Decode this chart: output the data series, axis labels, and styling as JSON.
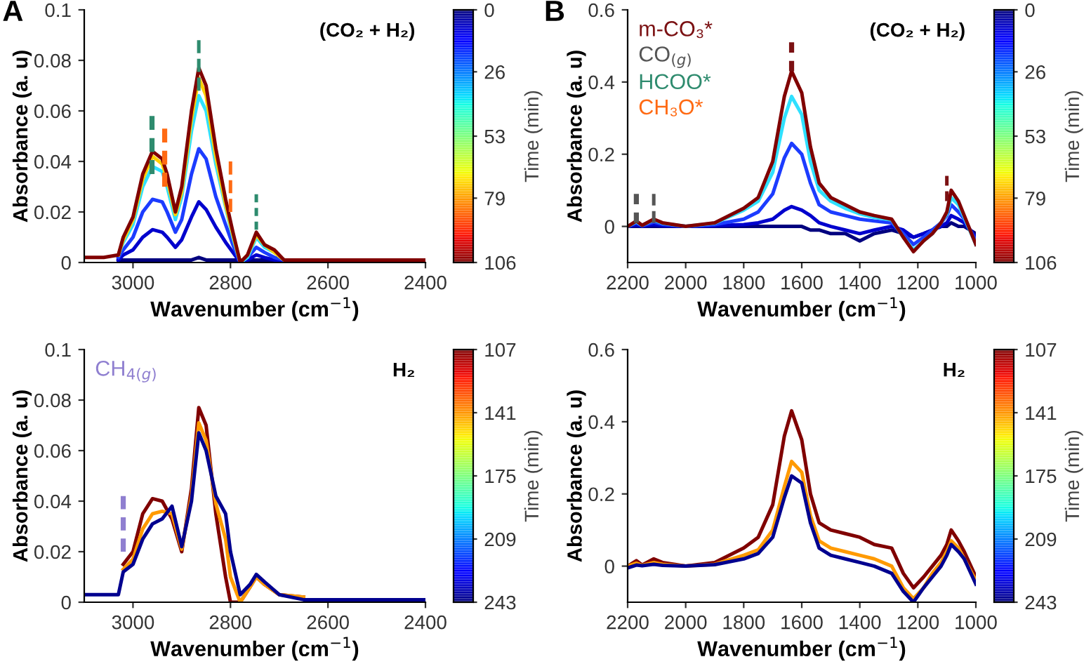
{
  "chart_data": [
    {
      "type": "line",
      "annotations": [
        "A",
        "(CO₂ + H₂)"
      ],
      "xlabel": "Wavenumber (cm$^{−1}$)",
      "ylabel": "Absorbance (a. u)",
      "clabel": "Time (min)",
      "clim": [
        106,
        0
      ],
      "cticks": [
        0,
        26,
        53,
        79,
        106
      ],
      "xlim": [
        3100,
        2400
      ],
      "xticks": [
        3000,
        2800,
        2600,
        2400
      ],
      "ylim": [
        0,
        0.1
      ],
      "yticks": [
        0,
        0.02,
        0.04,
        0.06,
        0.08,
        0.1
      ],
      "grid": false,
      "marker": "none",
      "legend": false,
      "x": [
        3100,
        3060,
        3030,
        3020,
        3000,
        2980,
        2960,
        2940,
        2930,
        2913,
        2900,
        2880,
        2865,
        2850,
        2830,
        2810,
        2795,
        2780,
        2765,
        2747,
        2730,
        2710,
        2690,
        2600,
        2500,
        2400
      ],
      "series": [
        {
          "color": "#00007f",
          "values": [
            null,
            null,
            0.001,
            0.001,
            0.001,
            0.001,
            0.001,
            0.001,
            0.001,
            0.001,
            0.001,
            0.001,
            0.002,
            0.001,
            0.001,
            0.001,
            0.001,
            0.001,
            0.001,
            0.001,
            0.001,
            0.001,
            0.001,
            null,
            null,
            null
          ]
        },
        {
          "color": "#0000cd",
          "values": [
            null,
            null,
            0.001,
            0.003,
            0.005,
            0.01,
            0.013,
            0.012,
            0.01,
            0.006,
            0.009,
            0.018,
            0.024,
            0.021,
            0.014,
            0.008,
            0.004,
            0.0,
            0.001,
            0.003,
            0.002,
            0.001,
            0.001,
            null,
            null,
            null
          ]
        },
        {
          "color": "#1c3cff",
          "values": [
            null,
            null,
            0.002,
            0.005,
            0.01,
            0.02,
            0.025,
            0.024,
            0.02,
            0.012,
            0.017,
            0.035,
            0.045,
            0.041,
            0.026,
            0.015,
            0.007,
            0.0,
            0.002,
            0.006,
            0.004,
            0.002,
            0.001,
            null,
            null,
            null
          ]
        },
        {
          "color": "#2fe0ff",
          "values": [
            null,
            null,
            0.003,
            0.008,
            0.015,
            0.03,
            0.038,
            0.036,
            0.03,
            0.017,
            0.026,
            0.052,
            0.066,
            0.06,
            0.039,
            0.022,
            0.01,
            0.0,
            0.002,
            0.01,
            0.006,
            0.004,
            0.001,
            null,
            null,
            null
          ]
        },
        {
          "color": "#ffd000",
          "values": [
            null,
            null,
            0.003,
            0.009,
            0.017,
            0.033,
            0.042,
            0.039,
            0.033,
            0.019,
            0.028,
            0.057,
            0.073,
            0.066,
            0.042,
            0.023,
            0.011,
            0.0,
            0.003,
            0.011,
            0.007,
            0.004,
            0.001,
            null,
            null,
            null
          ]
        },
        {
          "color": "#800000",
          "values": [
            0.002,
            0.002,
            0.003,
            0.01,
            0.018,
            0.035,
            0.044,
            0.041,
            0.035,
            0.02,
            0.03,
            0.06,
            0.077,
            0.07,
            0.045,
            0.025,
            0.012,
            0.0,
            0.003,
            0.012,
            0.007,
            0.005,
            0.001,
            0.001,
            0.001,
            0.001
          ]
        },
        {
          "name": "HCOO*",
          "color": "#2e8b6e",
          "line_style": "dashed",
          "x": [
            2961,
            2961
          ],
          "values": [
            0.035,
            0.058
          ]
        },
        {
          "color": "#2e8b6e",
          "line_style": "dashed",
          "x": [
            2865,
            2865
          ],
          "values": [
            0.068,
            0.088
          ]
        },
        {
          "color": "#2e8b6e",
          "line_style": "dashed",
          "x": [
            2747,
            2747
          ],
          "values": [
            0.013,
            0.027
          ]
        },
        {
          "name": "CH₃O*",
          "color": "#ff6a13",
          "line_style": "dashed",
          "x": [
            2935,
            2935
          ],
          "values": [
            0.03,
            0.053
          ]
        },
        {
          "color": "#ff6a13",
          "line_style": "dashed",
          "x": [
            2800,
            2800
          ],
          "values": [
            0.02,
            0.04
          ]
        }
      ]
    },
    {
      "type": "line",
      "annotations": [
        "B",
        "(CO₂ + H₂)"
      ],
      "xlabel": "Wavenumber (cm$^{−1}$)",
      "ylabel": "Absorbance (a. u)",
      "clabel": "Time (min)",
      "clim": [
        106,
        0
      ],
      "cticks": [
        0,
        26,
        53,
        79,
        106
      ],
      "xlim": [
        2200,
        1000
      ],
      "xticks": [
        2200,
        2000,
        1800,
        1600,
        1400,
        1200,
        1000
      ],
      "ylim": [
        -0.1,
        0.6
      ],
      "yticks": [
        0,
        0.2,
        0.4,
        0.6
      ],
      "grid": false,
      "marker": "none",
      "legend": "top left",
      "x": [
        2200,
        2170,
        2150,
        2110,
        2080,
        2000,
        1900,
        1800,
        1750,
        1700,
        1660,
        1635,
        1600,
        1570,
        1540,
        1500,
        1450,
        1400,
        1350,
        1290,
        1250,
        1215,
        1180,
        1150,
        1120,
        1100,
        1085,
        1060,
        1040,
        1000
      ],
      "series": [
        {
          "color": "#00007f",
          "values": [
            0,
            0,
            0,
            0,
            0,
            0,
            0,
            0,
            0,
            0,
            0,
            0,
            0,
            -0.01,
            -0.01,
            -0.02,
            -0.02,
            -0.04,
            -0.02,
            -0.01,
            -0.02,
            -0.03,
            -0.02,
            -0.01,
            0,
            0,
            0.01,
            0,
            0,
            -0.02
          ]
        },
        {
          "color": "#0000cd",
          "values": [
            0,
            0.004,
            0.001,
            0.005,
            0.002,
            0,
            0.002,
            0.005,
            0.01,
            0.02,
            0.045,
            0.055,
            0.045,
            0.03,
            0.01,
            0.0,
            -0.01,
            -0.02,
            -0.01,
            0,
            -0.01,
            -0.03,
            -0.02,
            -0.01,
            0,
            0.01,
            0.03,
            0.02,
            0.01,
            -0.03
          ]
        },
        {
          "color": "#1c3cff",
          "values": [
            0,
            0.01,
            0.002,
            0.012,
            0.006,
            0,
            0.005,
            0.02,
            0.04,
            0.09,
            0.19,
            0.23,
            0.2,
            0.12,
            0.06,
            0.04,
            0.03,
            0.02,
            0.015,
            0.01,
            -0.02,
            -0.05,
            -0.03,
            -0.01,
            0.01,
            0.03,
            0.06,
            0.04,
            0.02,
            -0.04
          ]
        },
        {
          "color": "#2fe0ff",
          "values": [
            0,
            0.013,
            0.003,
            0.018,
            0.009,
            0,
            0.009,
            0.045,
            0.07,
            0.15,
            0.3,
            0.36,
            0.31,
            0.18,
            0.1,
            0.07,
            0.05,
            0.035,
            0.025,
            0.018,
            -0.03,
            -0.065,
            -0.04,
            -0.02,
            0.01,
            0.035,
            0.08,
            0.06,
            0.025,
            -0.05
          ]
        },
        {
          "color": "#800000",
          "values": [
            0,
            0.015,
            0.003,
            0.02,
            0.01,
            0,
            0.01,
            0.05,
            0.08,
            0.18,
            0.36,
            0.43,
            0.37,
            0.22,
            0.12,
            0.08,
            0.06,
            0.04,
            0.03,
            0.02,
            -0.03,
            -0.07,
            -0.04,
            -0.02,
            0.01,
            0.04,
            0.1,
            0.07,
            0.03,
            -0.05
          ]
        },
        {
          "name": "m-CO₃*",
          "color": "#7b1113",
          "line_style": "dashed",
          "x": [
            1635,
            1635
          ],
          "values": [
            0.43,
            0.51
          ]
        },
        {
          "color": "#7b1113",
          "line_style": "dashed",
          "x": [
            1100,
            1100
          ],
          "values": [
            0.07,
            0.14
          ]
        },
        {
          "name": "CO$_{(g)}$",
          "color": "#555555",
          "line_style": "dashed",
          "x": [
            2170,
            2170
          ],
          "values": [
            0.01,
            0.09
          ]
        },
        {
          "color": "#555555",
          "line_style": "dashed",
          "x": [
            2110,
            2110
          ],
          "values": [
            0.01,
            0.09
          ]
        }
      ]
    },
    {
      "type": "line",
      "annotations": [
        "H₂"
      ],
      "xlabel": "Wavenumber (cm$^{−1}$)",
      "ylabel": "Absorbance (a. u)",
      "clabel": "Time (min)",
      "clim": [
        243,
        107
      ],
      "cticks": [
        107,
        141,
        175,
        209,
        243
      ],
      "xlim": [
        3100,
        2400
      ],
      "xticks": [
        3000,
        2800,
        2600,
        2400
      ],
      "ylim": [
        0,
        0.1
      ],
      "yticks": [
        0,
        0.02,
        0.04,
        0.06,
        0.08,
        0.1
      ],
      "grid": false,
      "marker": "none",
      "legend": "top left",
      "x": [
        3100,
        3030,
        3020,
        3000,
        2980,
        2960,
        2940,
        2920,
        2900,
        2880,
        2865,
        2850,
        2830,
        2810,
        2800,
        2780,
        2760,
        2747,
        2730,
        2700,
        2650,
        2600,
        2500,
        2400
      ],
      "series": [
        {
          "color": "#800000",
          "values": [
            null,
            null,
            0.015,
            0.02,
            0.035,
            0.041,
            0.04,
            0.033,
            0.02,
            0.045,
            0.077,
            0.07,
            0.035,
            0.01,
            0,
            0,
            0.006,
            0.01,
            0.007,
            0.003,
            0.002,
            null,
            null,
            null
          ]
        },
        {
          "color": "#ff9a00",
          "values": [
            null,
            null,
            0.013,
            0.017,
            0.029,
            0.035,
            0.036,
            0.035,
            0.021,
            0.042,
            0.071,
            0.064,
            0.039,
            0.025,
            0.01,
            0.0,
            0.006,
            0.01,
            0.007,
            0.003,
            0.002,
            null,
            null,
            null
          ]
        },
        {
          "color": "#00008f",
          "values": [
            0.003,
            0.003,
            0.012,
            0.015,
            0.025,
            0.031,
            0.033,
            0.038,
            0.022,
            0.04,
            0.067,
            0.06,
            0.042,
            0.035,
            0.02,
            0.003,
            0.007,
            0.011,
            0.008,
            0.003,
            0.001,
            0.001,
            0.001,
            0.001
          ]
        },
        {
          "name": "CH$_{4(g)}$",
          "color": "#8f7fd0",
          "line_style": "dashed",
          "x": [
            3020,
            3020
          ],
          "values": [
            0.02,
            0.042
          ]
        }
      ]
    },
    {
      "type": "line",
      "annotations": [
        "H₂"
      ],
      "xlabel": "Wavenumber (cm$^{−1}$)",
      "ylabel": "Absorbance (a. u)",
      "clabel": "Time (min)",
      "clim": [
        243,
        107
      ],
      "cticks": [
        107,
        141,
        175,
        209,
        243
      ],
      "xlim": [
        2200,
        1000
      ],
      "xticks": [
        2200,
        2000,
        1800,
        1600,
        1400,
        1200,
        1000
      ],
      "ylim": [
        -0.1,
        0.6
      ],
      "yticks": [
        0,
        0.2,
        0.4,
        0.6
      ],
      "grid": false,
      "marker": "none",
      "legend": false,
      "x": [
        2200,
        2170,
        2150,
        2110,
        2080,
        2000,
        1900,
        1800,
        1750,
        1700,
        1660,
        1635,
        1600,
        1570,
        1540,
        1500,
        1450,
        1400,
        1350,
        1290,
        1250,
        1215,
        1180,
        1150,
        1120,
        1100,
        1085,
        1060,
        1040,
        1000
      ],
      "series": [
        {
          "color": "#800000",
          "values": [
            0,
            0.015,
            0.003,
            0.02,
            0.01,
            0,
            0.01,
            0.05,
            0.08,
            0.17,
            0.36,
            0.43,
            0.35,
            0.2,
            0.12,
            0.1,
            0.09,
            0.08,
            0.06,
            0.05,
            -0.02,
            -0.06,
            -0.03,
            0,
            0.03,
            0.06,
            0.1,
            0.07,
            0.04,
            -0.03
          ]
        },
        {
          "color": "#ff9a00",
          "values": [
            0,
            0.008,
            0.002,
            0.01,
            0.005,
            0,
            0.005,
            0.03,
            0.045,
            0.1,
            0.22,
            0.29,
            0.26,
            0.14,
            0.07,
            0.05,
            0.04,
            0.03,
            0.02,
            0.0,
            -0.06,
            -0.09,
            -0.06,
            -0.02,
            0.01,
            0.04,
            0.07,
            0.05,
            0.02,
            -0.04
          ]
        },
        {
          "color": "#00008f",
          "values": [
            -0.005,
            0.003,
            0.001,
            0.005,
            0.002,
            0,
            0.004,
            0.02,
            0.035,
            0.08,
            0.19,
            0.25,
            0.23,
            0.12,
            0.05,
            0.03,
            0.02,
            0.01,
            0.0,
            -0.02,
            -0.07,
            -0.1,
            -0.06,
            -0.03,
            0,
            0.03,
            0.06,
            0.04,
            0.02,
            -0.05
          ]
        }
      ]
    }
  ]
}
